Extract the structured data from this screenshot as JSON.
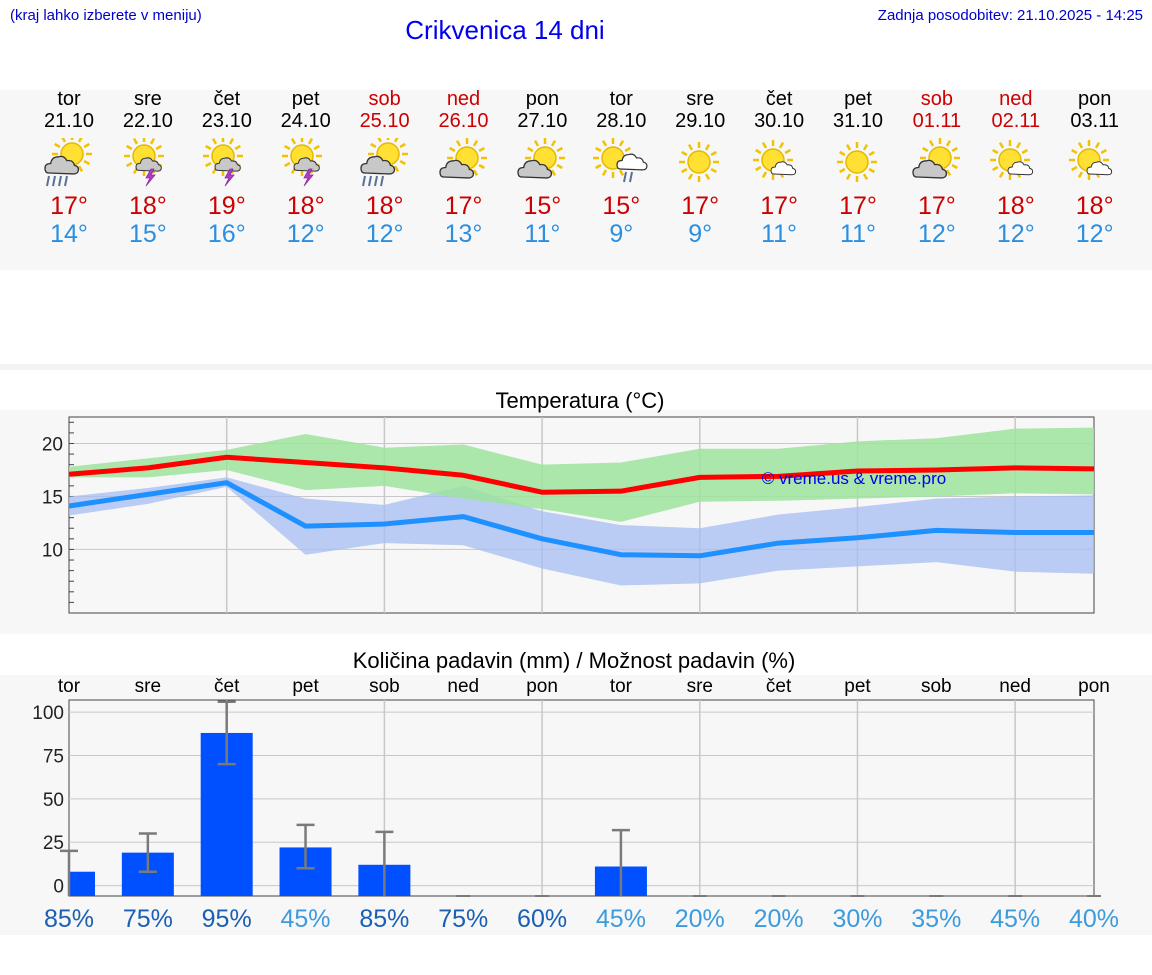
{
  "header": {
    "hint": "(kraj lahko izberete v meniju)",
    "title": "Crikvenica 14 dni",
    "updated": "Zadnja posodobitev: 21.10.2025 - 14:25"
  },
  "days": [
    {
      "name": "tor",
      "date": "21.10",
      "weekend": false,
      "icon": "sun-cloud-rain-icon",
      "max": "17°",
      "min": "14°"
    },
    {
      "name": "sre",
      "date": "22.10",
      "weekend": false,
      "icon": "sun-cloud-thunder-icon",
      "max": "18°",
      "min": "15°"
    },
    {
      "name": "čet",
      "date": "23.10",
      "weekend": false,
      "icon": "sun-cloud-thunder-icon",
      "max": "19°",
      "min": "16°"
    },
    {
      "name": "pet",
      "date": "24.10",
      "weekend": false,
      "icon": "sun-cloud-thunder-icon",
      "max": "18°",
      "min": "12°"
    },
    {
      "name": "sob",
      "date": "25.10",
      "weekend": true,
      "icon": "sun-cloud-rain-icon",
      "max": "18°",
      "min": "12°"
    },
    {
      "name": "ned",
      "date": "26.10",
      "weekend": true,
      "icon": "sun-cloud-icon",
      "max": "17°",
      "min": "13°"
    },
    {
      "name": "pon",
      "date": "27.10",
      "weekend": false,
      "icon": "sun-cloud-icon",
      "max": "15°",
      "min": "11°"
    },
    {
      "name": "tor",
      "date": "28.10",
      "weekend": false,
      "icon": "sun-cloud-drizzle-icon",
      "max": "15°",
      "min": "9°"
    },
    {
      "name": "sre",
      "date": "29.10",
      "weekend": false,
      "icon": "sun-icon",
      "max": "17°",
      "min": "9°"
    },
    {
      "name": "čet",
      "date": "30.10",
      "weekend": false,
      "icon": "sun-small-cloud-icon",
      "max": "17°",
      "min": "11°"
    },
    {
      "name": "pet",
      "date": "31.10",
      "weekend": false,
      "icon": "sun-icon",
      "max": "17°",
      "min": "11°"
    },
    {
      "name": "sob",
      "date": "01.11",
      "weekend": true,
      "icon": "sun-cloud-icon",
      "max": "17°",
      "min": "12°"
    },
    {
      "name": "ned",
      "date": "02.11",
      "weekend": true,
      "icon": "sun-small-cloud-icon",
      "max": "18°",
      "min": "12°"
    },
    {
      "name": "pon",
      "date": "03.11",
      "weekend": false,
      "icon": "sun-small-cloud-icon",
      "max": "18°",
      "min": "12°"
    }
  ],
  "colors": {
    "max": "#ff0000",
    "min": "#1e90ff",
    "maxBand": "#9ee39e",
    "minBand": "#a5bdf1",
    "bar": "#0050ff",
    "prob_high": "#1a5fb4",
    "prob_low": "#3c9bdc"
  },
  "chart_data": [
    {
      "type": "line",
      "title": "Temperatura (°C)",
      "watermark": "© vreme.us & vreme.pro",
      "x": [
        "21.10",
        "22.10",
        "23.10",
        "24.10",
        "25.10",
        "26.10",
        "27.10",
        "28.10",
        "29.10",
        "30.10",
        "31.10",
        "01.11",
        "02.11",
        "03.11"
      ],
      "ylim": [
        4,
        22.5
      ],
      "yticks": [
        10,
        15,
        20
      ],
      "series": [
        {
          "name": "max",
          "values": [
            17.1,
            17.7,
            18.7,
            18.2,
            17.7,
            17.0,
            15.4,
            15.5,
            16.8,
            16.9,
            17.4,
            17.5,
            17.7,
            17.6
          ],
          "band_low": [
            16.8,
            16.8,
            17.5,
            15.6,
            16.0,
            14.8,
            13.8,
            12.6,
            14.5,
            14.6,
            14.8,
            15.0,
            15.3,
            15.2
          ],
          "band_high": [
            17.8,
            18.6,
            19.4,
            20.9,
            19.6,
            19.9,
            18.0,
            18.2,
            19.5,
            19.5,
            20.2,
            20.5,
            21.4,
            21.5
          ]
        },
        {
          "name": "min",
          "values": [
            14.1,
            15.2,
            16.3,
            12.2,
            12.4,
            13.1,
            11.0,
            9.5,
            9.4,
            10.6,
            11.1,
            11.8,
            11.6,
            11.6
          ],
          "band_low": [
            13.2,
            14.3,
            15.9,
            9.5,
            10.6,
            10.4,
            8.2,
            6.6,
            6.8,
            8.0,
            8.4,
            8.8,
            7.9,
            7.7
          ],
          "band_high": [
            15.0,
            15.8,
            16.8,
            14.8,
            14.2,
            16.0,
            13.6,
            12.3,
            12.0,
            13.3,
            14.0,
            14.8,
            15.0,
            15.1
          ]
        }
      ]
    },
    {
      "type": "bar",
      "title": "Količina padavin (mm) / Možnost padavin (%)",
      "categories": [
        "tor",
        "sre",
        "čet",
        "pet",
        "sob",
        "ned",
        "pon",
        "tor",
        "sre",
        "čet",
        "pet",
        "sob",
        "ned",
        "pon"
      ],
      "values": [
        8,
        19,
        88,
        22,
        12,
        0,
        0,
        11,
        0,
        0,
        0,
        0,
        0,
        0
      ],
      "err_low": [
        0,
        8,
        70,
        10,
        0,
        0,
        0,
        0,
        0,
        0,
        0,
        0,
        0,
        0
      ],
      "err_high": [
        20,
        30,
        106,
        35,
        31,
        0,
        0,
        32,
        0,
        0,
        0,
        0,
        0,
        0
      ],
      "ylim": [
        -6,
        107
      ],
      "yticks": [
        0,
        25,
        50,
        75,
        100
      ],
      "probabilities": [
        "85%",
        "75%",
        "95%",
        "45%",
        "85%",
        "75%",
        "60%",
        "45%",
        "20%",
        "20%",
        "30%",
        "35%",
        "45%",
        "40%"
      ]
    }
  ]
}
